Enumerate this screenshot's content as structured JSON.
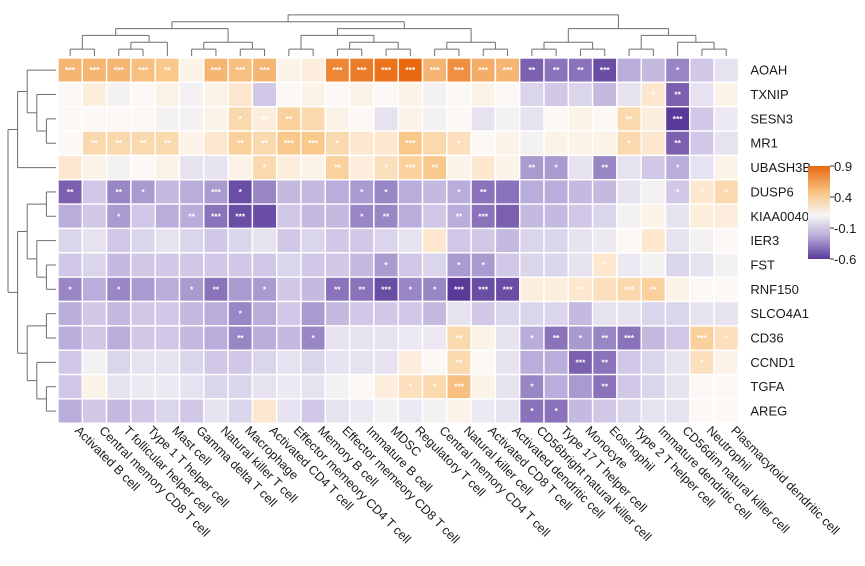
{
  "chart_data": {
    "type": "heatmap",
    "title": "",
    "rows": [
      "AOAH",
      "TXNIP",
      "SESN3",
      "MR1",
      "UBASH3B",
      "DUSP6",
      "KIAA0040",
      "IER3",
      "FST",
      "RNF150",
      "SLCO4A1",
      "CD36",
      "CCND1",
      "TGFA",
      "AREG"
    ],
    "columns": [
      "Activated B cell",
      "Central memory CD8 T cell",
      "T follicular helper cell",
      "Type 1 T helper cell",
      "Mast cell",
      "Gamma delta T cell",
      "Natural killer T cell",
      "Macrophage",
      "Activated CD4 T cell",
      "Effector memeory CD4 T cell",
      "Memory B cell",
      "Effector memeory CD8 T cell",
      "Immature B cell",
      "MDSC",
      "Regulatory T cell",
      "Central memory CD4 T cell",
      "Natural killer cell",
      "Activated CD8 T cell",
      "Activated dendritic cell",
      "CD56bright natural killer cell",
      "Type 17 T helper cell",
      "Monocyte",
      "Eosinophil",
      "Type 2 T helper cell",
      "Immature dendritic cell",
      "CD56dim natural killer cell",
      "Neutrophil",
      "Plasmacytoid dendritic cell"
    ],
    "values": [
      [
        0.5,
        0.5,
        0.5,
        0.45,
        0.4,
        0.1,
        0.5,
        0.45,
        0.5,
        0.1,
        0.15,
        0.75,
        0.8,
        0.85,
        0.9,
        0.5,
        0.7,
        0.55,
        0.5,
        -0.5,
        -0.45,
        -0.45,
        -0.55,
        -0.3,
        -0.25,
        -0.4,
        -0.2,
        -0.1
      ],
      [
        0.05,
        0.15,
        0.0,
        0.05,
        0.1,
        0.0,
        0.1,
        0.2,
        -0.2,
        0.05,
        0.1,
        0.05,
        0.1,
        0.05,
        0.1,
        0.0,
        0.05,
        0.1,
        0.05,
        -0.15,
        -0.2,
        -0.15,
        -0.25,
        -0.1,
        0.2,
        -0.5,
        -0.1,
        0.1
      ],
      [
        0.05,
        0.05,
        0.05,
        0.05,
        0.0,
        0.0,
        0.1,
        0.3,
        0.15,
        0.35,
        0.3,
        0.1,
        0.05,
        -0.1,
        0.1,
        0.0,
        0.05,
        -0.1,
        0.0,
        -0.1,
        0.05,
        0.1,
        0.05,
        0.3,
        0.15,
        -0.6,
        -0.2,
        -0.05
      ],
      [
        0.05,
        0.3,
        0.3,
        0.3,
        0.3,
        0.1,
        0.2,
        0.35,
        0.3,
        0.4,
        0.4,
        0.3,
        0.2,
        0.2,
        0.4,
        0.3,
        0.25,
        0.05,
        0.1,
        0.0,
        0.1,
        0.1,
        0.1,
        0.3,
        0.2,
        -0.5,
        -0.2,
        -0.1
      ],
      [
        0.2,
        0.1,
        0.0,
        0.05,
        0.1,
        -0.1,
        -0.1,
        0.1,
        0.3,
        0.15,
        0.1,
        0.35,
        0.15,
        0.25,
        0.35,
        0.4,
        0.1,
        0.2,
        0.1,
        -0.35,
        -0.35,
        -0.1,
        -0.4,
        -0.1,
        -0.2,
        -0.3,
        -0.1,
        0.1
      ],
      [
        -0.5,
        -0.2,
        -0.4,
        -0.35,
        -0.25,
        -0.3,
        -0.35,
        -0.55,
        -0.4,
        -0.25,
        -0.25,
        -0.3,
        -0.35,
        -0.4,
        -0.3,
        -0.25,
        -0.3,
        -0.45,
        -0.45,
        -0.3,
        -0.3,
        -0.25,
        -0.25,
        -0.1,
        0.0,
        -0.2,
        0.2,
        0.3
      ],
      [
        -0.3,
        -0.2,
        -0.35,
        -0.2,
        -0.3,
        -0.3,
        -0.45,
        -0.55,
        -0.55,
        -0.2,
        -0.25,
        -0.25,
        -0.4,
        -0.4,
        -0.3,
        -0.2,
        -0.3,
        -0.45,
        -0.5,
        -0.25,
        -0.25,
        -0.2,
        -0.15,
        0.0,
        0.1,
        -0.1,
        0.15,
        0.15
      ],
      [
        -0.15,
        -0.1,
        -0.2,
        -0.15,
        -0.1,
        -0.15,
        -0.2,
        -0.15,
        -0.1,
        -0.2,
        -0.15,
        -0.2,
        -0.2,
        -0.15,
        -0.1,
        0.2,
        -0.2,
        -0.2,
        -0.25,
        -0.15,
        -0.15,
        -0.1,
        -0.05,
        0.05,
        0.2,
        -0.1,
        0.0,
        0.05
      ],
      [
        -0.2,
        -0.15,
        -0.25,
        -0.2,
        -0.2,
        -0.2,
        -0.2,
        -0.2,
        -0.2,
        -0.15,
        -0.2,
        -0.2,
        -0.25,
        -0.35,
        -0.2,
        -0.15,
        -0.35,
        -0.35,
        -0.2,
        -0.15,
        -0.15,
        -0.1,
        0.2,
        -0.05,
        0.0,
        -0.15,
        -0.1,
        0.0
      ],
      [
        -0.4,
        -0.3,
        -0.4,
        -0.35,
        -0.3,
        -0.35,
        -0.45,
        -0.35,
        -0.35,
        -0.2,
        -0.25,
        -0.45,
        -0.45,
        -0.55,
        -0.4,
        -0.4,
        -0.6,
        -0.55,
        -0.55,
        0.15,
        0.15,
        0.2,
        0.25,
        0.3,
        0.35,
        0.1,
        0.05,
        0.05
      ],
      [
        -0.3,
        -0.2,
        -0.25,
        -0.2,
        -0.2,
        -0.25,
        -0.3,
        -0.4,
        -0.3,
        -0.2,
        -0.35,
        -0.25,
        -0.2,
        -0.2,
        -0.2,
        -0.25,
        -0.1,
        -0.2,
        -0.15,
        -0.15,
        -0.15,
        -0.25,
        -0.1,
        -0.1,
        -0.15,
        -0.15,
        -0.1,
        -0.1
      ],
      [
        -0.3,
        -0.2,
        -0.3,
        -0.2,
        -0.2,
        -0.25,
        -0.3,
        -0.4,
        -0.3,
        -0.25,
        -0.4,
        -0.1,
        -0.1,
        -0.1,
        -0.05,
        -0.05,
        0.3,
        0.1,
        -0.1,
        -0.3,
        -0.45,
        -0.35,
        -0.4,
        -0.45,
        -0.25,
        -0.2,
        0.35,
        0.25
      ],
      [
        -0.2,
        0.0,
        -0.15,
        -0.1,
        -0.1,
        -0.15,
        -0.2,
        -0.2,
        -0.15,
        -0.1,
        -0.15,
        -0.1,
        -0.1,
        -0.1,
        0.15,
        0.05,
        0.3,
        0.05,
        -0.1,
        -0.3,
        -0.3,
        -0.5,
        -0.45,
        -0.2,
        -0.15,
        -0.1,
        0.25,
        0.1
      ],
      [
        -0.2,
        0.1,
        -0.1,
        -0.05,
        -0.05,
        -0.1,
        -0.15,
        -0.15,
        -0.1,
        -0.05,
        -0.1,
        0.0,
        0.05,
        0.15,
        0.25,
        0.3,
        0.45,
        0.1,
        -0.1,
        -0.4,
        -0.3,
        -0.35,
        -0.45,
        -0.2,
        -0.15,
        -0.1,
        0.05,
        0.05
      ],
      [
        -0.3,
        -0.2,
        -0.25,
        -0.2,
        -0.15,
        -0.2,
        -0.1,
        -0.15,
        0.2,
        -0.1,
        -0.2,
        -0.1,
        -0.05,
        0.0,
        -0.05,
        0.0,
        0.1,
        -0.05,
        -0.1,
        -0.45,
        -0.45,
        -0.25,
        -0.2,
        -0.15,
        -0.1,
        -0.1,
        0.05,
        0.05
      ]
    ],
    "significance": [
      [
        "***",
        "***",
        "***",
        "***",
        "**",
        "",
        "***",
        "***",
        "***",
        "",
        "",
        "***",
        "***",
        "***",
        "***",
        "***",
        "***",
        "***",
        "***",
        "**",
        "**",
        "**",
        "***",
        "",
        "",
        "*",
        "",
        ""
      ],
      [
        "",
        "",
        "",
        "",
        "",
        "",
        "",
        "",
        "",
        "",
        "",
        "",
        "",
        "",
        "",
        "",
        "",
        "",
        "",
        "",
        "",
        "",
        "",
        "",
        "*",
        "**",
        "",
        ""
      ],
      [
        "",
        "",
        "",
        "",
        "",
        "",
        "",
        "*",
        "**",
        "**",
        "",
        "",
        "",
        "",
        "",
        "",
        "",
        "",
        "",
        "",
        "",
        "",
        "",
        "**",
        "",
        "***",
        "",
        ""
      ],
      [
        "",
        "**",
        "**",
        "**",
        "**",
        "",
        "",
        "**",
        "**",
        "***",
        "***",
        "*",
        "",
        "",
        "***",
        "",
        "*",
        "",
        "",
        "",
        "",
        "",
        "",
        "*",
        "",
        "**",
        "",
        ""
      ],
      [
        "",
        "",
        "",
        "",
        "",
        "",
        "",
        "",
        "*",
        "",
        "",
        "**",
        "",
        "*",
        "***",
        "**",
        "",
        "",
        "",
        "**",
        "*",
        "",
        "**",
        "",
        "",
        "*",
        "",
        ""
      ],
      [
        "**",
        "",
        "**",
        "*",
        "",
        "",
        "***",
        "*",
        "",
        "",
        "",
        "",
        "*",
        "*",
        "",
        "",
        "*",
        "**",
        "",
        "",
        "",
        "",
        "",
        "",
        "",
        "*",
        "*",
        "*"
      ],
      [
        "",
        "",
        "*",
        "",
        "",
        "**",
        "***",
        "***",
        "",
        "",
        "",
        "",
        "*",
        "**",
        "",
        "",
        "**",
        "***",
        "",
        "",
        "",
        "",
        "",
        "",
        "",
        "",
        "",
        ""
      ],
      [
        "",
        "",
        "",
        "",
        "",
        "",
        "",
        "",
        "",
        "",
        "",
        "",
        "",
        "",
        "",
        "",
        "",
        "",
        "",
        "",
        "",
        "",
        "",
        "",
        "",
        "",
        "",
        ""
      ],
      [
        "",
        "",
        "",
        "",
        "",
        "",
        "",
        "",
        "",
        "",
        "",
        "",
        "",
        "*",
        "",
        "",
        "*",
        "*",
        "",
        "",
        "",
        "",
        "*",
        "",
        "",
        "",
        "",
        ""
      ],
      [
        "*",
        "",
        "*",
        "",
        "",
        "*",
        "**",
        "",
        "*",
        "",
        "",
        "**",
        "**",
        "***",
        "*",
        "*",
        "***",
        "***",
        "***",
        "",
        "",
        "**",
        "",
        "***",
        "**",
        "",
        "",
        ""
      ],
      [
        "",
        "",
        "",
        "",
        "",
        "",
        "",
        "*",
        "",
        "",
        "",
        "",
        "",
        "",
        "",
        "",
        "",
        "",
        "",
        "",
        "",
        "",
        "",
        "",
        "",
        "",
        "",
        ""
      ],
      [
        "",
        "",
        "",
        "",
        "",
        "",
        "",
        "**",
        "",
        "",
        "*",
        "",
        "",
        "",
        "",
        "",
        "**",
        "",
        "",
        "*",
        "**",
        "*",
        "**",
        "***",
        "",
        "",
        "***",
        "*"
      ],
      [
        "",
        "",
        "",
        "",
        "",
        "",
        "",
        "",
        "",
        "",
        "",
        "",
        "",
        "",
        "",
        "",
        "**",
        "",
        "",
        "",
        "",
        "***",
        "**",
        "",
        "",
        "",
        "*",
        ""
      ],
      [
        "",
        "",
        "",
        "",
        "",
        "",
        "",
        "",
        "",
        "",
        "",
        "",
        "",
        "",
        "*",
        "*",
        "***",
        "",
        "",
        "*",
        "",
        "",
        "**",
        "",
        "",
        "",
        "",
        ""
      ],
      [
        "",
        "",
        "",
        "",
        "",
        "",
        "",
        "",
        "",
        "",
        "",
        "",
        "",
        "",
        "",
        "",
        "",
        "",
        "",
        "*",
        "*",
        "",
        "",
        "",
        "",
        "",
        "",
        ""
      ]
    ],
    "colorbar": {
      "ticks": [
        "0.9",
        "0.4",
        "-0.1",
        "-0.6"
      ],
      "min": -0.6,
      "max": 0.9,
      "low_color": "#5a3a99",
      "mid_color": "#f8f6f4",
      "high_color": "#e8690f"
    },
    "xlabel": "",
    "ylabel": ""
  }
}
